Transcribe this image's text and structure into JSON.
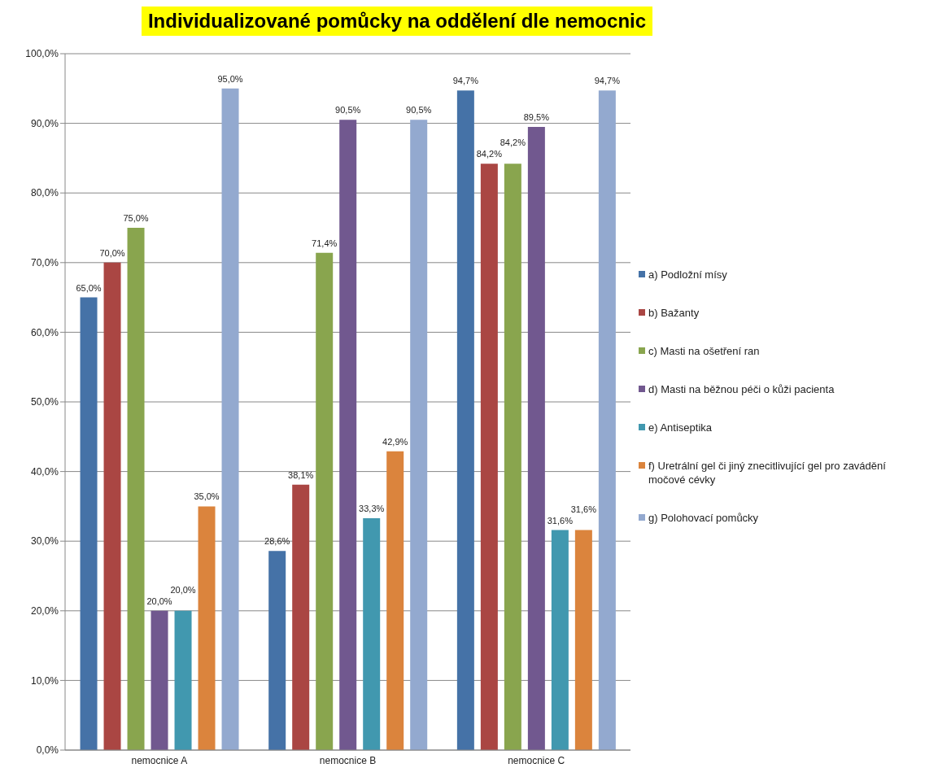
{
  "chart_data": {
    "type": "bar",
    "title": "Individualizované pomůcky na oddělení dle nemocnic",
    "categories": [
      "nemocnice A",
      "nemocnice B",
      "nemocnice C"
    ],
    "ylim": [
      0,
      100
    ],
    "yticks": [
      {
        "value": 0,
        "label": "0,0%"
      },
      {
        "value": 10,
        "label": "10,0%"
      },
      {
        "value": 20,
        "label": "20,0%"
      },
      {
        "value": 30,
        "label": "30,0%"
      },
      {
        "value": 40,
        "label": "40,0%"
      },
      {
        "value": 50,
        "label": "50,0%"
      },
      {
        "value": 60,
        "label": "60,0%"
      },
      {
        "value": 70,
        "label": "70,0%"
      },
      {
        "value": 80,
        "label": "80,0%"
      },
      {
        "value": 90,
        "label": "90,0%"
      },
      {
        "value": 100,
        "label": "100,0%"
      }
    ],
    "grid": "y",
    "legend": "right",
    "series": [
      {
        "name": "a) Podložní mísy",
        "color": "#4572a7",
        "values": [
          65.0,
          28.6,
          94.7
        ],
        "value_labels": [
          "65,0%",
          "28,6%",
          "94,7%"
        ]
      },
      {
        "name": "b) Bažanty",
        "color": "#aa4643",
        "values": [
          70.0,
          38.1,
          84.2
        ],
        "value_labels": [
          "70,0%",
          "38,1%",
          "84,2%"
        ]
      },
      {
        "name": "c) Masti na ošetření ran",
        "color": "#89a54e",
        "values": [
          75.0,
          71.4,
          84.2
        ],
        "value_labels": [
          "75,0%",
          "71,4%",
          "84,2%"
        ]
      },
      {
        "name": "d) Masti na běžnou péči o kůži pacienta",
        "color": "#71588f",
        "values": [
          20.0,
          90.5,
          89.5
        ],
        "value_labels": [
          "20,0%",
          "90,5%",
          "89,5%"
        ]
      },
      {
        "name": "e) Antiseptika",
        "color": "#4198af",
        "values": [
          20.0,
          33.3,
          31.6
        ],
        "value_labels": [
          "20,0%",
          "33,3%",
          "31,6%"
        ]
      },
      {
        "name": "f) Uretrální gel či jiný znecitlivující gel pro zavádění močové cévky",
        "color": "#db843d",
        "values": [
          35.0,
          42.9,
          31.6
        ],
        "value_labels": [
          "35,0%",
          "42,9%",
          "31,6%"
        ]
      },
      {
        "name": "g) Polohovací pomůcky",
        "color": "#93a9cf",
        "values": [
          95.0,
          90.5,
          94.7
        ],
        "value_labels": [
          "95,0%",
          "90,5%",
          "94,7%"
        ]
      }
    ]
  }
}
